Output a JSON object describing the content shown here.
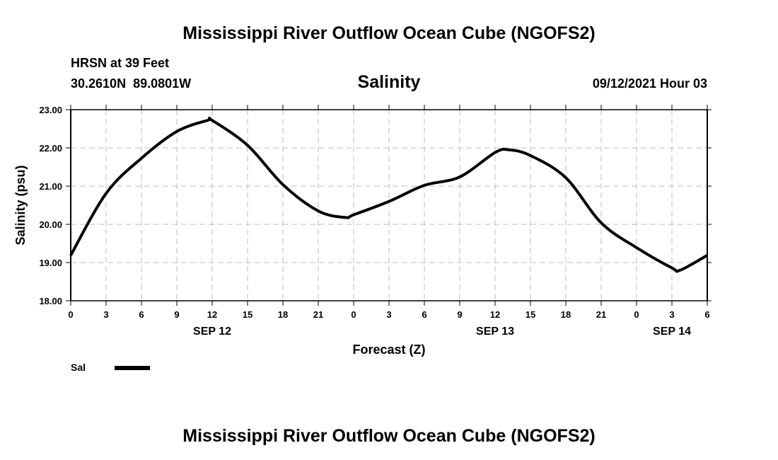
{
  "page": {
    "title_top": "Mississippi River Outflow Ocean Cube (NGOFS2)",
    "title_bottom": "Mississippi River Outflow Ocean Cube (NGOFS2)",
    "station": "HRSN at 39 Feet",
    "coords": "30.2610N  89.0801W",
    "variable": "Salinity",
    "run": "09/12/2021 Hour 03"
  },
  "chart_data": {
    "type": "line",
    "title": "Salinity",
    "xlabel": "Forecast (Z)",
    "ylabel": "Salinity (psu)",
    "xlim": [
      0,
      54
    ],
    "ylim": [
      18,
      23
    ],
    "grid": true,
    "x_unit": "hours since SEP 12 00Z",
    "x_tick_labels": [
      "0",
      "3",
      "6",
      "9",
      "12",
      "15",
      "18",
      "21",
      "0",
      "3",
      "6",
      "9",
      "12",
      "15",
      "18",
      "21",
      "0",
      "3",
      "6"
    ],
    "y_tick_labels": [
      "18.00",
      "19.00",
      "20.00",
      "21.00",
      "22.00",
      "23.00"
    ],
    "date_labels": [
      {
        "label": "SEP 12",
        "hour": 12
      },
      {
        "label": "SEP 13",
        "hour": 36
      },
      {
        "label": "SEP 14",
        "hour": 51
      }
    ],
    "legend": {
      "placement": "bottom-left",
      "entries": [
        "Sal"
      ]
    },
    "series": [
      {
        "name": "Sal",
        "color": "#000000",
        "x": [
          0,
          3,
          6,
          9,
          11.6,
          12,
          15,
          18,
          21,
          23.3,
          24,
          27,
          30,
          33,
          36,
          37.2,
          39,
          42,
          45,
          48,
          51,
          51.7,
          54
        ],
        "y": [
          19.19,
          20.81,
          21.73,
          22.43,
          22.72,
          22.72,
          22.07,
          21.04,
          20.35,
          20.18,
          20.25,
          20.6,
          21.02,
          21.24,
          21.88,
          21.95,
          21.8,
          21.22,
          20.04,
          19.39,
          18.86,
          18.8,
          19.19
        ]
      }
    ]
  }
}
